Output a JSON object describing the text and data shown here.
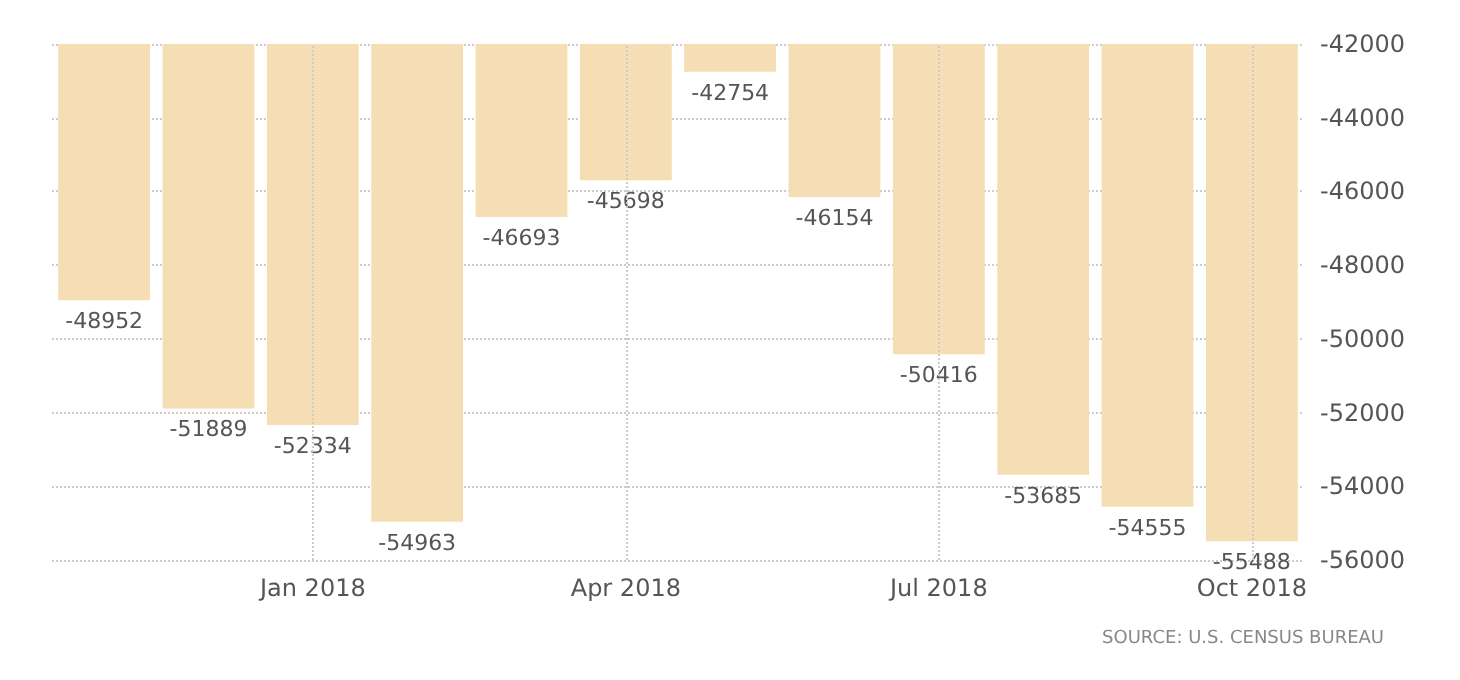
{
  "chart_data": {
    "type": "bar",
    "categories": [
      null,
      null,
      "Jan 2018",
      null,
      null,
      "Apr 2018",
      null,
      null,
      "Jul 2018",
      null,
      null,
      "Oct 2018"
    ],
    "values": [
      -48952,
      -51889,
      -52334,
      -54963,
      -46693,
      -45698,
      -42754,
      -46154,
      -50416,
      -53685,
      -54555,
      -55488
    ],
    "color": "#f5deb3",
    "data_labels": true,
    "ylim": [
      -56000,
      -42000
    ],
    "yticks": [
      -56000,
      -54000,
      -52000,
      -50000,
      -48000,
      -46000,
      -44000,
      -42000
    ],
    "grid": true,
    "annotations": [
      "SOURCE: U.S. CENSUS BUREAU"
    ]
  }
}
